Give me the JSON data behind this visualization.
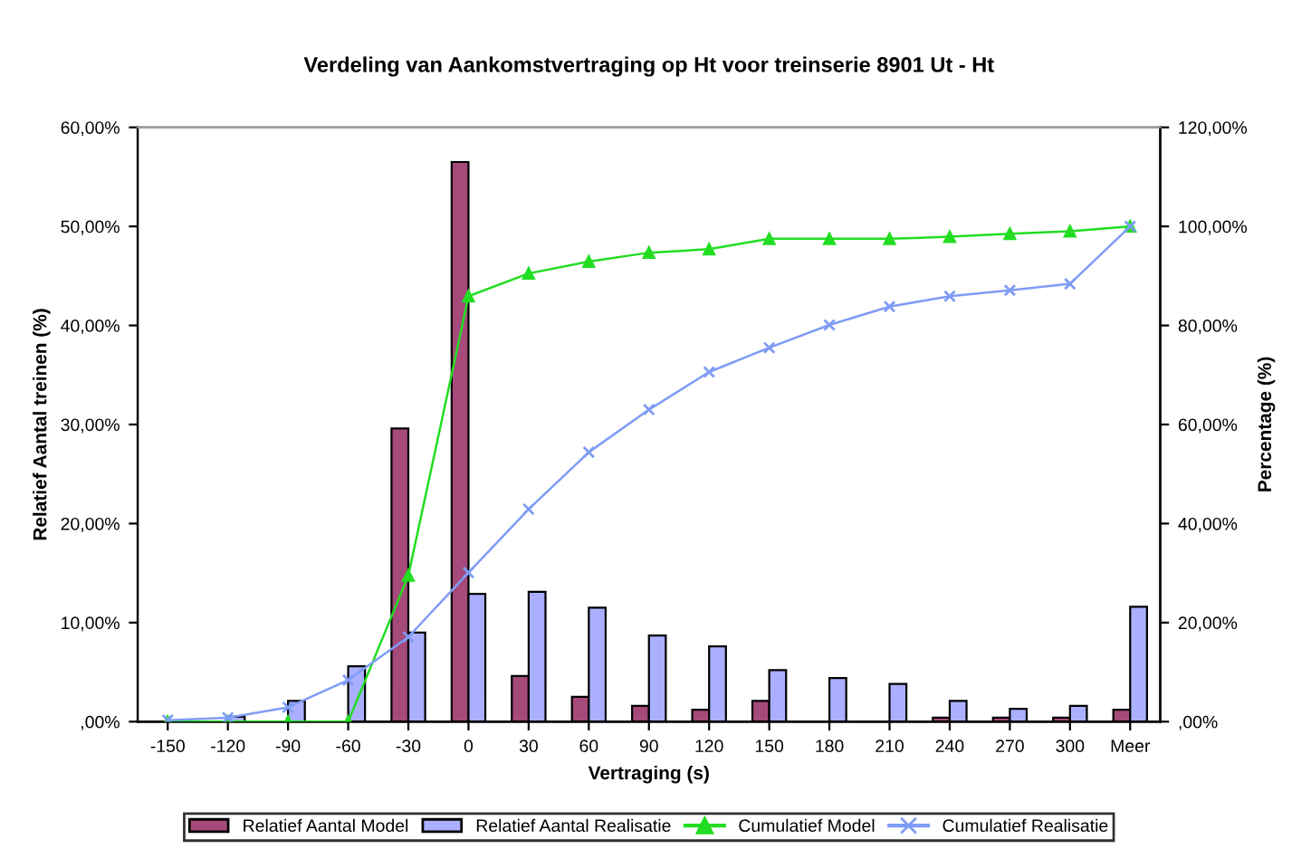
{
  "chart_data": {
    "type": "bar",
    "title": "Verdeling van Aankomstvertraging op Ht voor treinserie 8901 Ut - Ht",
    "xlabel": "Vertraging (s)",
    "ylabel": "Relatief Aantal treinen (%)",
    "y2label": "Percentage (%)",
    "categories": [
      "-150",
      "-120",
      "-90",
      "-60",
      "-30",
      "0",
      "30",
      "60",
      "90",
      "120",
      "150",
      "180",
      "210",
      "240",
      "270",
      "300",
      "Meer"
    ],
    "series": [
      {
        "name": "Relatief Aantal Model",
        "color": "#a54a7a",
        "values": [
          null,
          null,
          null,
          null,
          29.6,
          56.5,
          4.6,
          2.5,
          1.6,
          1.2,
          2.1,
          null,
          null,
          0.4,
          0.4,
          0.4,
          1.2
        ]
      },
      {
        "name": "Relatief Aantal Realisatie",
        "color": "#aab0ff",
        "values": [
          0.1,
          0.5,
          2.1,
          5.6,
          9.0,
          12.9,
          13.1,
          11.5,
          8.7,
          7.6,
          5.2,
          4.4,
          3.8,
          2.1,
          1.3,
          1.6,
          11.6
        ]
      },
      {
        "name": "Cumulatief Model",
        "type": "line",
        "axis": "y2",
        "color": "#22dd22",
        "marker": "triangle",
        "values": [
          0,
          0,
          0,
          0,
          29.5,
          85.9,
          90.5,
          92.9,
          94.7,
          95.4,
          97.5,
          97.5,
          97.5,
          97.9,
          98.5,
          99.0,
          100
        ]
      },
      {
        "name": "Cumulatief Realisatie",
        "type": "line",
        "axis": "y2",
        "color": "#7f9cf5",
        "marker": "cross",
        "values": [
          0.3,
          0.8,
          2.9,
          8.4,
          17.1,
          30.1,
          42.9,
          54.4,
          63.0,
          70.6,
          75.5,
          80.1,
          83.8,
          85.9,
          87.1,
          88.4,
          100
        ]
      }
    ],
    "ylim": [
      0,
      60
    ],
    "yticks": [
      {
        "value": 0,
        "label": ",00%"
      },
      {
        "value": 10,
        "label": "10,00%"
      },
      {
        "value": 20,
        "label": "20,00%"
      },
      {
        "value": 30,
        "label": "30,00%"
      },
      {
        "value": 40,
        "label": "40,00%"
      },
      {
        "value": 50,
        "label": "50,00%"
      },
      {
        "value": 60,
        "label": "60,00%"
      }
    ],
    "y2lim": [
      0,
      120
    ],
    "y2ticks": [
      {
        "value": 0,
        "label": ",00%"
      },
      {
        "value": 20,
        "label": "20,00%"
      },
      {
        "value": 40,
        "label": "40,00%"
      },
      {
        "value": 60,
        "label": "60,00%"
      },
      {
        "value": 80,
        "label": "80,00%"
      },
      {
        "value": 100,
        "label": "100,00%"
      },
      {
        "value": 120,
        "label": "120,00%"
      }
    ],
    "grid": false,
    "legend": "bottom",
    "line_style": "solid"
  }
}
